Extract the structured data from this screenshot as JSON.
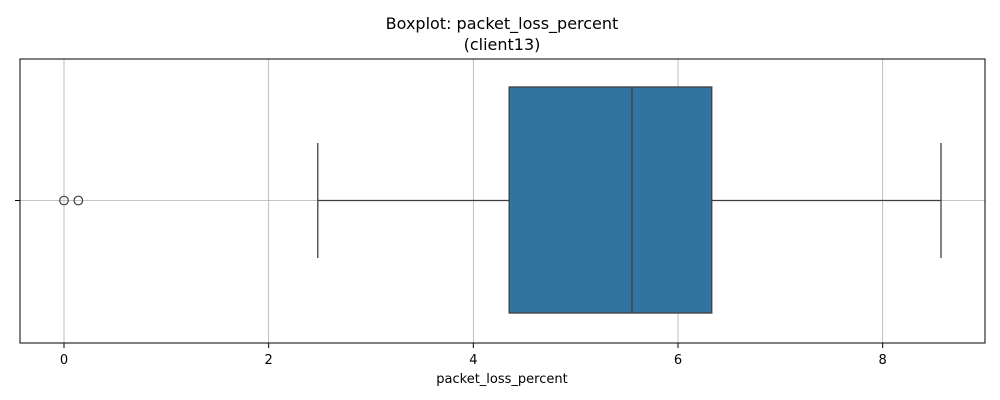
{
  "chart_data": {
    "type": "boxplot",
    "title": "Boxplot: packet_loss_percent",
    "subtitle": "(client13)",
    "xlabel": "packet_loss_percent",
    "ylabel": "",
    "xlim": [
      -0.43,
      9.0
    ],
    "x_ticks": [
      0,
      2,
      4,
      6,
      8
    ],
    "x_tick_labels": [
      "0",
      "2",
      "4",
      "6",
      "8"
    ],
    "grid": true,
    "box": {
      "whisker_low": 2.48,
      "q1": 4.35,
      "median": 5.55,
      "q3": 6.33,
      "whisker_high": 8.57
    },
    "outliers": [
      0.0,
      0.14
    ],
    "colors": {
      "box_fill": "#3274a1",
      "line": "#3f3f3f",
      "grid": "#b0b0b0",
      "axes": "#000000"
    }
  }
}
